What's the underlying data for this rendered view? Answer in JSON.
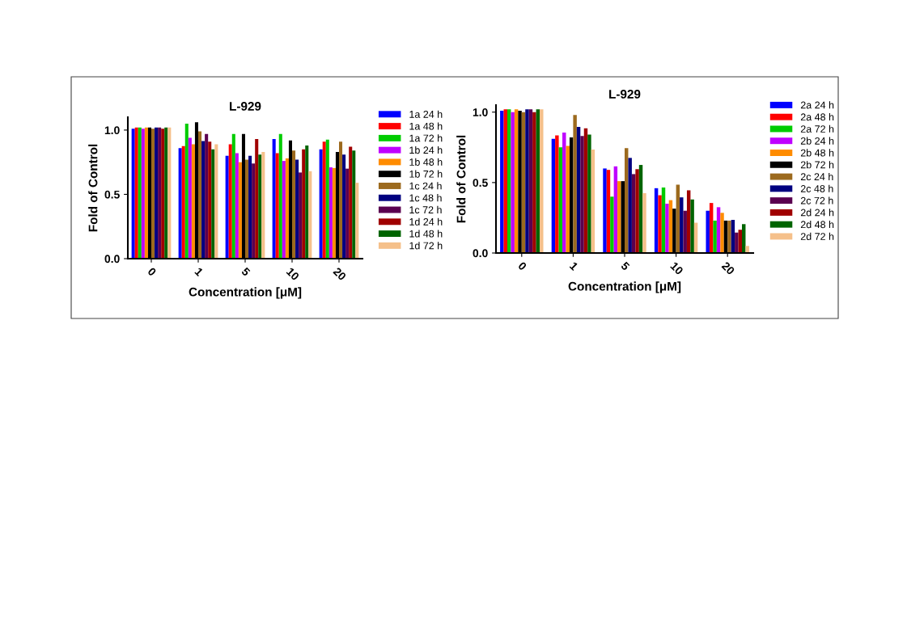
{
  "chart_data": [
    {
      "type": "bar",
      "title": "L-929",
      "xlabel": "Concentration [μM]",
      "ylabel": "Fold of Control",
      "categories": [
        "0",
        "1",
        "5",
        "10",
        "20"
      ],
      "ylim": [
        0,
        1.1
      ],
      "yticks": [
        {
          "value": 0,
          "label": "0.0"
        },
        {
          "value": 0.5,
          "label": "0.5"
        },
        {
          "value": 1,
          "label": "1.0"
        }
      ],
      "grid": false,
      "legend": "right",
      "series": [
        {
          "name": "1a 24 h",
          "color": "#0000ff",
          "values": [
            1.01,
            0.86,
            0.8,
            0.93,
            0.85
          ]
        },
        {
          "name": "1a 48 h",
          "color": "#ff0000",
          "values": [
            1.02,
            0.875,
            0.89,
            0.82,
            0.91
          ]
        },
        {
          "name": "1a 72 h",
          "color": "#00cc00",
          "values": [
            1.02,
            1.05,
            0.97,
            0.97,
            0.925
          ]
        },
        {
          "name": "1b 24 h",
          "color": "#bf00ff",
          "values": [
            1.01,
            0.94,
            0.82,
            0.76,
            0.71
          ]
        },
        {
          "name": "1b 48 h",
          "color": "#ff8c00",
          "values": [
            1.02,
            0.89,
            0.75,
            0.78,
            0.705
          ]
        },
        {
          "name": "1b 72 h",
          "color": "#000000",
          "values": [
            1.02,
            1.06,
            0.97,
            0.92,
            0.83
          ]
        },
        {
          "name": "1c 24 h",
          "color": "#9c6a1e",
          "values": [
            1.01,
            0.99,
            0.77,
            0.84,
            0.91
          ]
        },
        {
          "name": "1c 48 h",
          "color": "#000080",
          "values": [
            1.02,
            0.915,
            0.8,
            0.77,
            0.81
          ]
        },
        {
          "name": "1c 72 h",
          "color": "#5a0050",
          "values": [
            1.02,
            0.97,
            0.74,
            0.67,
            0.7
          ]
        },
        {
          "name": "1d 24 h",
          "color": "#a00000",
          "values": [
            1.01,
            0.91,
            0.93,
            0.85,
            0.87
          ]
        },
        {
          "name": "1d 48 h",
          "color": "#006400",
          "values": [
            1.02,
            0.85,
            0.81,
            0.88,
            0.84
          ]
        },
        {
          "name": "1d 72 h",
          "color": "#f5c08a",
          "values": [
            1.02,
            0.89,
            0.83,
            0.68,
            0.59
          ]
        }
      ]
    },
    {
      "type": "bar",
      "title": "L-929",
      "xlabel": "Concentration [μM]",
      "ylabel": "Fold of Control",
      "categories": [
        "0",
        "1",
        "5",
        "10",
        "20"
      ],
      "ylim": [
        0,
        1.05
      ],
      "yticks": [
        {
          "value": 0,
          "label": "0.0"
        },
        {
          "value": 0.5,
          "label": "0.5"
        },
        {
          "value": 1,
          "label": "1.0"
        }
      ],
      "grid": false,
      "legend": "right",
      "series": [
        {
          "name": "2a 24 h",
          "color": "#0000ff",
          "values": [
            1.01,
            0.81,
            0.6,
            0.46,
            0.3
          ]
        },
        {
          "name": "2a 48 h",
          "color": "#ff0000",
          "values": [
            1.02,
            0.835,
            0.59,
            0.41,
            0.355
          ]
        },
        {
          "name": "2a 72 h",
          "color": "#00cc00",
          "values": [
            1.02,
            0.75,
            0.4,
            0.465,
            0.23
          ]
        },
        {
          "name": "2b 24 h",
          "color": "#bf00ff",
          "values": [
            1.0,
            0.855,
            0.615,
            0.35,
            0.325
          ]
        },
        {
          "name": "2b 48 h",
          "color": "#ff8c00",
          "values": [
            1.02,
            0.76,
            0.51,
            0.375,
            0.285
          ]
        },
        {
          "name": "2b 72 h",
          "color": "#000000",
          "values": [
            1.01,
            0.82,
            0.51,
            0.315,
            0.23
          ]
        },
        {
          "name": "2c 24 h",
          "color": "#9c6a1e",
          "values": [
            1.0,
            0.98,
            0.745,
            0.485,
            0.23
          ]
        },
        {
          "name": "2c 48 h",
          "color": "#000080",
          "values": [
            1.02,
            0.895,
            0.675,
            0.395,
            0.235
          ]
        },
        {
          "name": "2c 72 h",
          "color": "#5a0050",
          "values": [
            1.02,
            0.83,
            0.56,
            0.3,
            0.145
          ]
        },
        {
          "name": "2d 24 h",
          "color": "#a00000",
          "values": [
            1.0,
            0.885,
            0.595,
            0.445,
            0.165
          ]
        },
        {
          "name": "2d 48 h",
          "color": "#006400",
          "values": [
            1.02,
            0.84,
            0.625,
            0.38,
            0.205
          ]
        },
        {
          "name": "2d 72 h",
          "color": "#f5c08a",
          "values": [
            1.02,
            0.735,
            0.425,
            0.215,
            0.05
          ]
        }
      ]
    }
  ]
}
